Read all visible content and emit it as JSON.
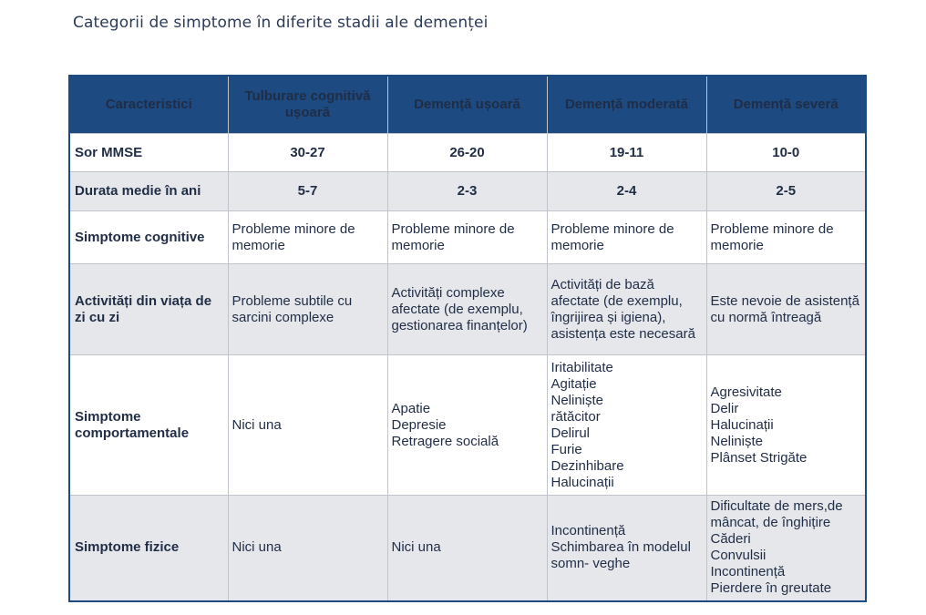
{
  "caption": "Categorii de simptome în diferite stadii ale demenței",
  "headers": [
    "Caracteristici",
    "Tulburare cognitivă ușoară",
    "Demență ușoară",
    "Demență moderată",
    "Demență severă"
  ],
  "mmse": {
    "label": "Sor MMSE",
    "values": [
      "30-27",
      "26-20",
      "19-11",
      "10-0"
    ]
  },
  "duration": {
    "label": "Durata medie în ani",
    "values": [
      "5-7",
      "2-3",
      "2-4",
      "2-5"
    ]
  },
  "cognitive": {
    "label": "Simptome cognitive",
    "values": [
      "Probleme minore de memorie",
      "Probleme minore de memorie",
      "Probleme minore de memorie",
      "Probleme minore de memorie"
    ]
  },
  "daily": {
    "label": "Activități din viața de zi cu zi",
    "values": [
      "Probleme subtile cu sarcini complexe",
      "Activități complexe afectate (de exemplu, gestionarea finanțelor)",
      "Activități de bază afectate (de exemplu, îngrijirea și igiena), asistența este necesară",
      "Este nevoie de asistență cu normă întreagă"
    ]
  },
  "behavioral": {
    "label": "Simptome comportamentale",
    "col1": "Nici una",
    "col2": [
      "Apatie",
      "Depresie",
      "Retragere socială"
    ],
    "col3": [
      "Iritabilitate",
      "Agitație",
      "Neliniște",
      "rătăcitor",
      "Delirul",
      "Furie",
      "Dezinhibare",
      "Halucinații"
    ],
    "col4": [
      "Agresivitate",
      "Delir",
      "Halucinații",
      "Neliniște",
      "Plânset Strigăte"
    ]
  },
  "physical": {
    "label": "Simptome fizice",
    "col1": "Nici una",
    "col2": "Nici una",
    "col3": [
      "Incontinență",
      "Schimbarea în modelul somn- veghe"
    ],
    "col4": [
      "Dificultate de mers,de mâncat, de înghițire",
      "Căderi",
      "Convulsii",
      "Incontinență",
      "Pierdere în greutate"
    ]
  }
}
